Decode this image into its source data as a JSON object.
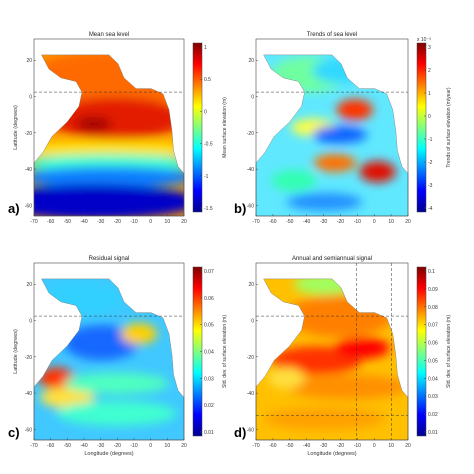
{
  "chart_data": [
    {
      "type": "heatmap",
      "panel_letter": "a)",
      "title": "Mean sea level",
      "xlabel": "",
      "ylabel": "Latitude (degrees)",
      "xticks": [
        "-70",
        "-60",
        "-50",
        "-40",
        "-30",
        "-20",
        "-10",
        "0",
        "10",
        "20"
      ],
      "yticks": [
        "20",
        "0",
        "-20",
        "-40",
        "-60"
      ],
      "colorbar": {
        "label": "Mean surface elevation (m)",
        "ticks": [
          "1",
          "0.5",
          "0",
          "-0.5",
          "-1",
          "-1.5"
        ]
      },
      "colormap": "jet"
    },
    {
      "type": "heatmap",
      "panel_letter": "b)",
      "title": "Trends of sea level",
      "xlabel": "",
      "ylabel": "",
      "xticks": [
        "-70",
        "-60",
        "-50",
        "-40",
        "-30",
        "-20",
        "-10",
        "0",
        "10",
        "20"
      ],
      "yticks": [
        "20",
        "0",
        "-20",
        "-40",
        "-60"
      ],
      "colorbar": {
        "label": "Trends of surface elevation (m/year)",
        "exponent": "x 10⁻³",
        "ticks": [
          "3",
          "2",
          "1",
          "0",
          "-1",
          "-2",
          "-3",
          "-4"
        ]
      },
      "colormap": "jet"
    },
    {
      "type": "heatmap",
      "panel_letter": "c)",
      "title": "Residual signal",
      "xlabel": "Longitude (degrees)",
      "ylabel": "Latitude (degrees)",
      "xticks": [
        "-70",
        "-60",
        "-50",
        "-40",
        "-30",
        "-20",
        "-10",
        "0",
        "10",
        "20"
      ],
      "yticks": [
        "20",
        "0",
        "-20",
        "-40",
        "-60"
      ],
      "colorbar": {
        "label": "Std. dev. of surface elevation (m)",
        "ticks": [
          "0.07",
          "0.06",
          "0.05",
          "0.04",
          "0.03",
          "0.02",
          "0.01"
        ]
      },
      "colormap": "jet"
    },
    {
      "type": "heatmap",
      "panel_letter": "d)",
      "title": "Annual and semiannual signal",
      "xlabel": "Longitude (degrees)",
      "ylabel": "",
      "xticks": [
        "-70",
        "-60",
        "-50",
        "-40",
        "-30",
        "-20",
        "-10",
        "0",
        "10",
        "20"
      ],
      "yticks": [
        "20",
        "0",
        "-20",
        "-40",
        "-60"
      ],
      "colorbar": {
        "label": "Std. dev. of surface elevation (m)",
        "ticks": [
          "0.1",
          "0.09",
          "0.08",
          "0.07",
          "0.06",
          "0.05",
          "0.04",
          "0.03",
          "0.02",
          "0.01"
        ]
      },
      "colormap": "jet"
    }
  ]
}
